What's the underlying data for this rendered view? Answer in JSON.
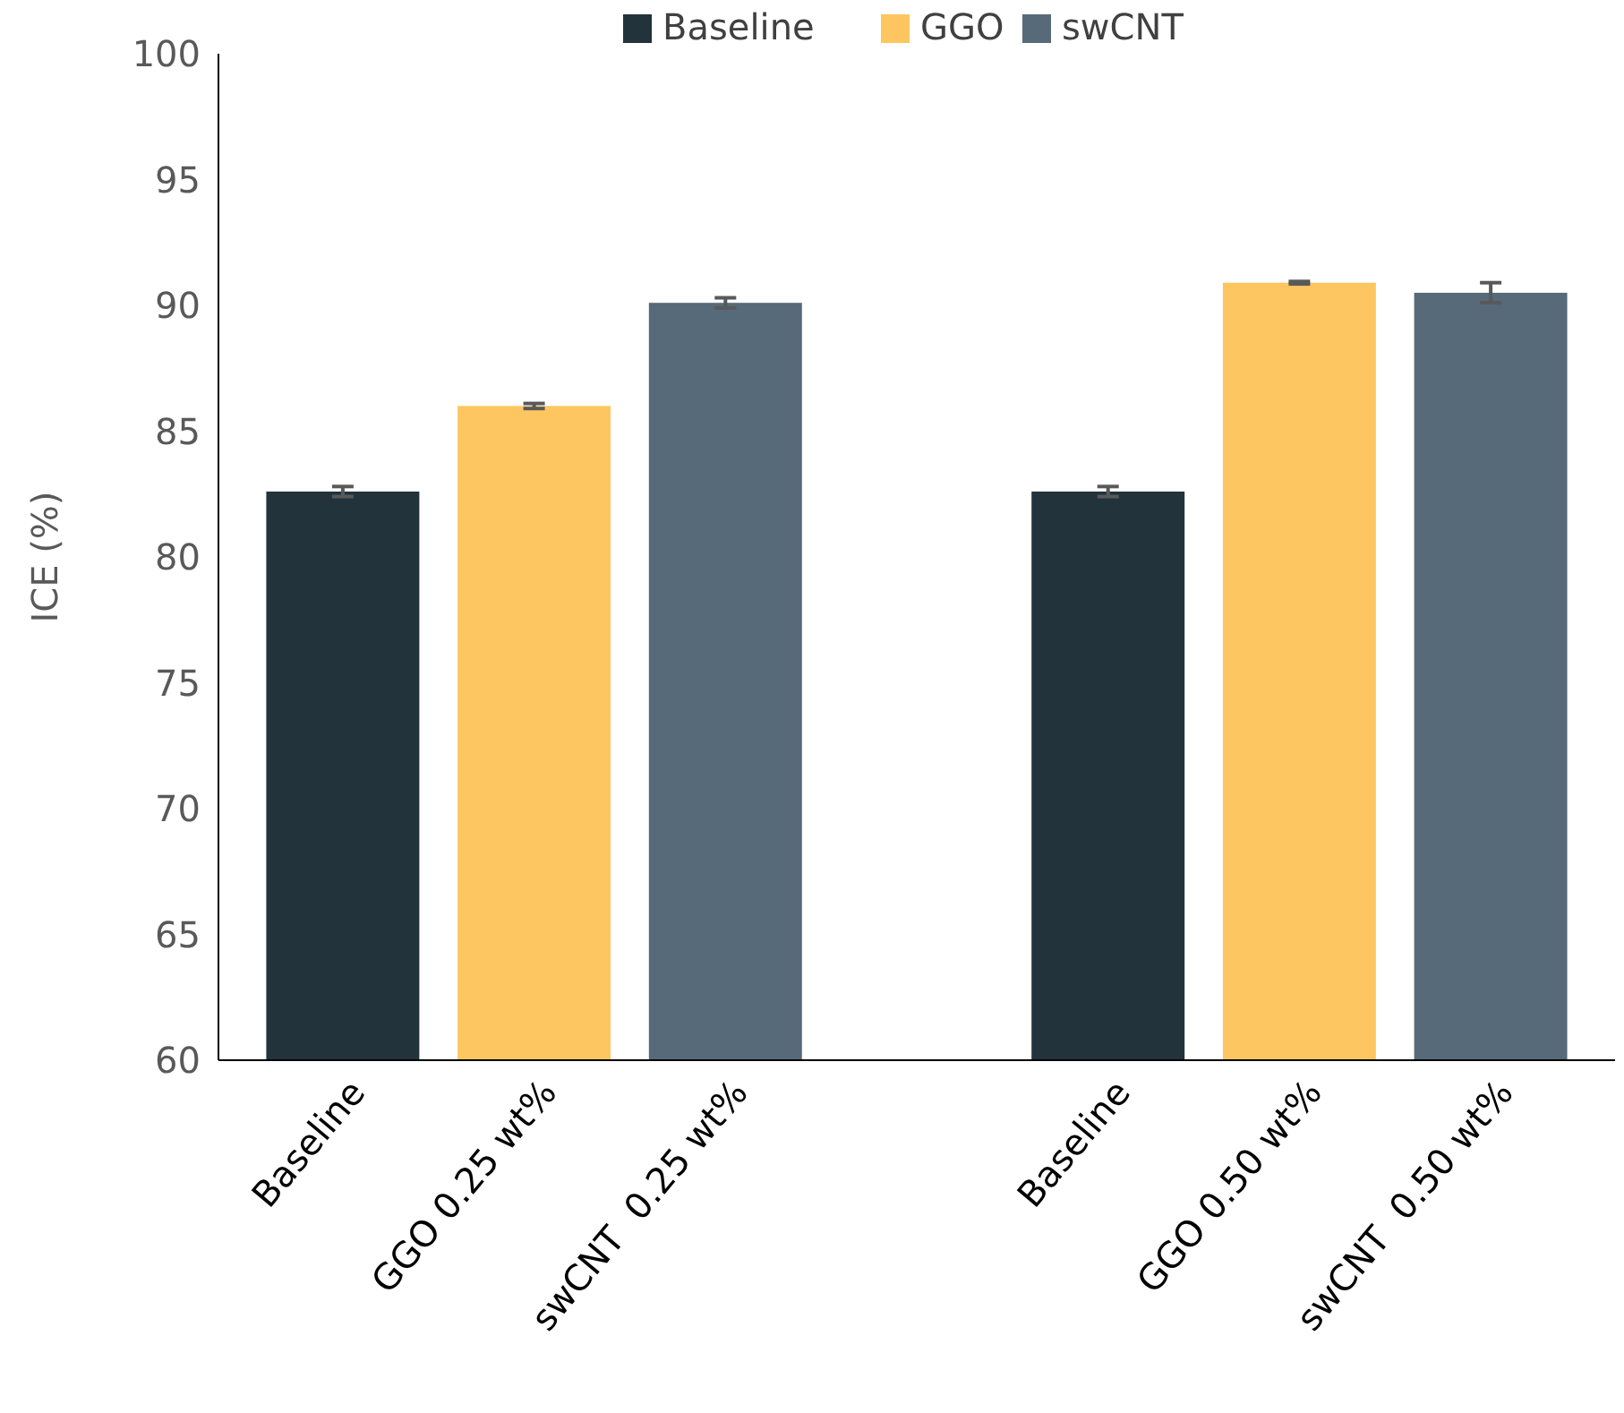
{
  "chart_data": {
    "type": "bar",
    "ylabel": "ICE (%)",
    "categories": [
      "Baseline",
      "GGO 0.25 wt%",
      "swCNT  0.25 wt%",
      null,
      "Baseline",
      "GGO 0.50 wt%",
      "swCNT  0.50 wt%"
    ],
    "series": [
      {
        "name": "Baseline",
        "color": "#22333b",
        "values": [
          82.6,
          null,
          null,
          null,
          82.6,
          null,
          null
        ],
        "errors": [
          0.2,
          null,
          null,
          null,
          0.2,
          null,
          null
        ]
      },
      {
        "name": "GGO",
        "color": "#fec660",
        "values": [
          null,
          86.0,
          null,
          null,
          null,
          90.9,
          null
        ],
        "errors": [
          null,
          0.1,
          null,
          null,
          null,
          0.05,
          null
        ]
      },
      {
        "name": "swCNT",
        "color": "#566a7a",
        "values": [
          null,
          null,
          90.1,
          null,
          null,
          null,
          90.5
        ],
        "errors": [
          null,
          null,
          0.2,
          null,
          null,
          null,
          0.4
        ]
      }
    ],
    "ylim": [
      60,
      100
    ],
    "yticks": [
      60,
      65,
      70,
      75,
      80,
      85,
      90,
      95,
      100
    ],
    "grid": false,
    "legend": "top"
  }
}
